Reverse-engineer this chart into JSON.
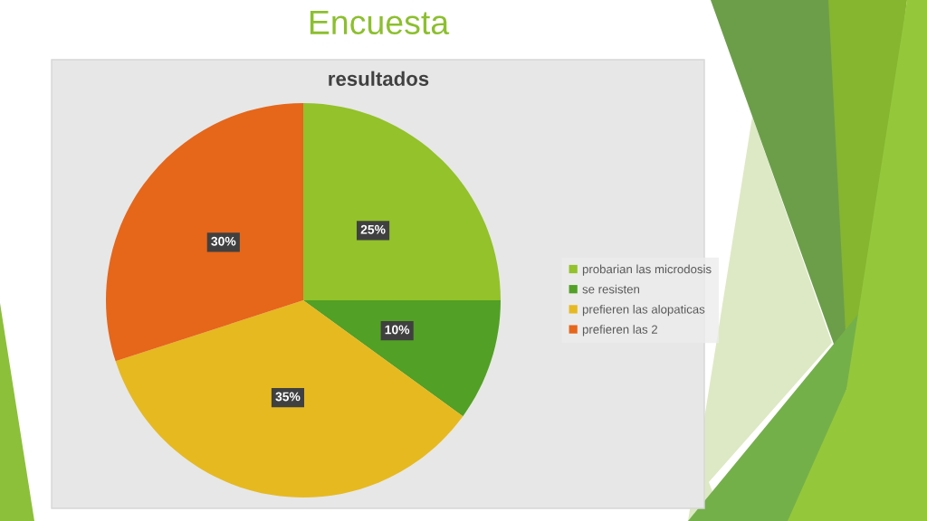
{
  "chart_data": {
    "type": "pie",
    "title": "Encuesta",
    "subtitle": "resultados",
    "categories": [
      "probarian las microdosis",
      "se resisten",
      "prefieren las alopaticas",
      "prefieren las 2"
    ],
    "values": [
      25,
      10,
      35,
      30
    ],
    "colors": [
      "#93c22a",
      "#52a025",
      "#e6b920",
      "#e6661a"
    ],
    "value_labels": [
      "25%",
      "10%",
      "35%",
      "30%"
    ],
    "legend": "right"
  }
}
